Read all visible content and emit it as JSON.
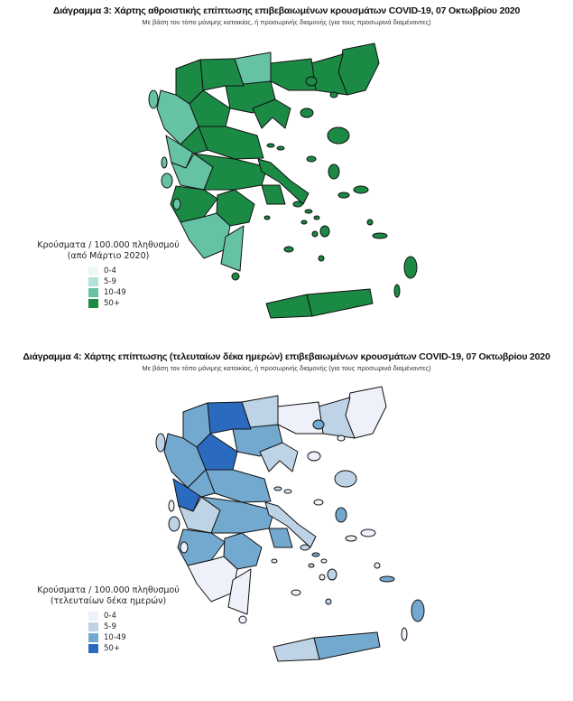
{
  "map1": {
    "title": "Διάγραμμα 3: Χάρτης αθροιστικής επίπτωσης επιβεβαιωμένων κρουσμάτων COVID-19, 07 Οκτωβρίου 2020",
    "subtitle": "Με βάση τον τόπο μόνιμης κατοικίας, ή προσωρινής διαμονής (για τους προσωρινά διαμένοντες)",
    "legend_title_1": "Κρούσματα / 100.000 πληθυσμού",
    "legend_title_2": "(από Μάρτιο 2020)",
    "classes": [
      {
        "label": "0-4",
        "color": "#eef7f6"
      },
      {
        "label": "5-9",
        "color": "#b3e1dc"
      },
      {
        "label": "10-49",
        "color": "#66c2a4"
      },
      {
        "label": "50+",
        "color": "#1b8a45"
      }
    ],
    "region_classes": [
      3,
      3,
      3,
      2,
      3,
      3,
      3,
      3,
      3,
      2,
      2,
      3,
      3,
      2,
      3,
      3,
      3,
      3,
      3,
      2,
      2,
      3,
      3
    ],
    "island_classes": [
      2,
      2,
      2,
      2,
      3,
      3,
      3,
      3,
      3,
      3,
      3,
      3,
      3,
      3,
      3,
      3,
      3,
      3,
      3,
      3,
      3,
      3,
      3,
      3,
      3,
      3,
      3,
      3
    ]
  },
  "map2": {
    "title": "Διάγραμμα 4: Χάρτης επίπτωσης (τελευταίων δέκα ημερών) επιβεβαιωμένων κρουσμάτων COVID-19, 07 Οκτωβρίου 2020",
    "subtitle": "Με βάση τον τόπο μόνιμης κατοικίας, ή προσωρινής διαμονής (για τους προσωρινά διαμένοντες)",
    "legend_title_1": "Κρούσματα / 100.000 πληθυσμού",
    "legend_title_2": "(τελευταίων δέκα ημερών)",
    "classes": [
      {
        "label": "0-4",
        "color": "#eef0fa"
      },
      {
        "label": "5-9",
        "color": "#bfd3e6"
      },
      {
        "label": "10-49",
        "color": "#74a9cf"
      },
      {
        "label": "50+",
        "color": "#2b6bbf"
      }
    ],
    "region_classes": [
      0,
      1,
      0,
      1,
      2,
      1,
      3,
      2,
      3,
      2,
      3,
      2,
      2,
      1,
      2,
      2,
      1,
      2,
      2,
      0,
      0,
      1,
      2
    ],
    "island_classes": [
      1,
      0,
      1,
      0,
      2,
      0,
      0,
      1,
      2,
      0,
      0,
      0,
      1,
      1,
      0,
      0,
      0,
      1,
      2,
      2,
      0,
      0,
      2,
      1,
      0,
      0,
      1,
      0
    ]
  }
}
